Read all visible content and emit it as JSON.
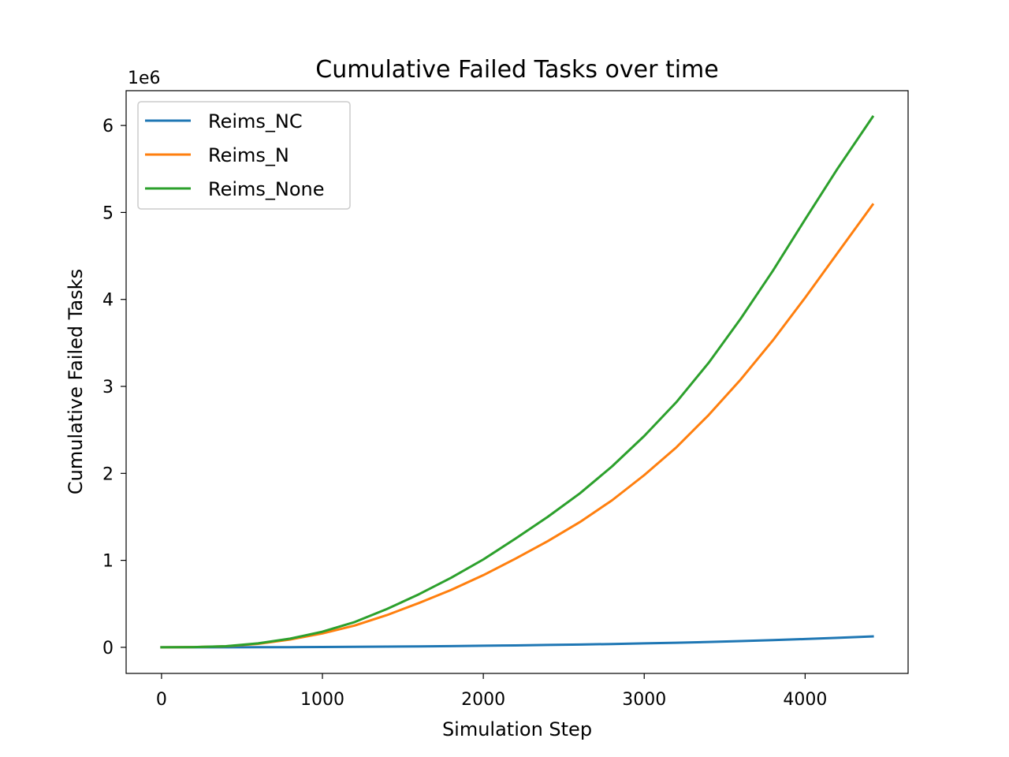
{
  "chart_data": {
    "type": "line",
    "title": "Cumulative Failed Tasks over time",
    "xlabel": "Simulation Step",
    "ylabel": "Cumulative Failed Tasks",
    "y_offset_label": "1e6",
    "xlim": [
      -220,
      4640
    ],
    "ylim": [
      -0.3,
      6.4
    ],
    "x_ticks": [
      0,
      1000,
      2000,
      3000,
      4000
    ],
    "y_ticks": [
      0,
      1,
      2,
      3,
      4,
      5,
      6
    ],
    "grid": false,
    "legend_position": "upper-left",
    "x": [
      0,
      200,
      400,
      600,
      800,
      1000,
      1200,
      1400,
      1600,
      1800,
      2000,
      2200,
      2400,
      2600,
      2800,
      3000,
      3200,
      3400,
      3600,
      3800,
      4000,
      4200,
      4420
    ],
    "series": [
      {
        "name": "Reims_NC",
        "color": "#1f77b4",
        "values": [
          0,
          0.0,
          0.0,
          0.001,
          0.002,
          0.004,
          0.006,
          0.008,
          0.011,
          0.014,
          0.018,
          0.022,
          0.027,
          0.032,
          0.038,
          0.045,
          0.053,
          0.062,
          0.072,
          0.083,
          0.095,
          0.109,
          0.125
        ]
      },
      {
        "name": "Reims_N",
        "color": "#ff7f0e",
        "values": [
          0,
          0.003,
          0.012,
          0.04,
          0.09,
          0.16,
          0.25,
          0.37,
          0.51,
          0.66,
          0.83,
          1.02,
          1.22,
          1.44,
          1.69,
          1.98,
          2.3,
          2.67,
          3.08,
          3.53,
          4.02,
          4.53,
          5.09
        ]
      },
      {
        "name": "Reims_None",
        "color": "#2ca02c",
        "values": [
          0,
          0.003,
          0.013,
          0.045,
          0.1,
          0.18,
          0.29,
          0.44,
          0.61,
          0.8,
          1.01,
          1.25,
          1.5,
          1.77,
          2.08,
          2.43,
          2.82,
          3.27,
          3.78,
          4.33,
          4.92,
          5.5,
          6.1
        ]
      }
    ]
  }
}
